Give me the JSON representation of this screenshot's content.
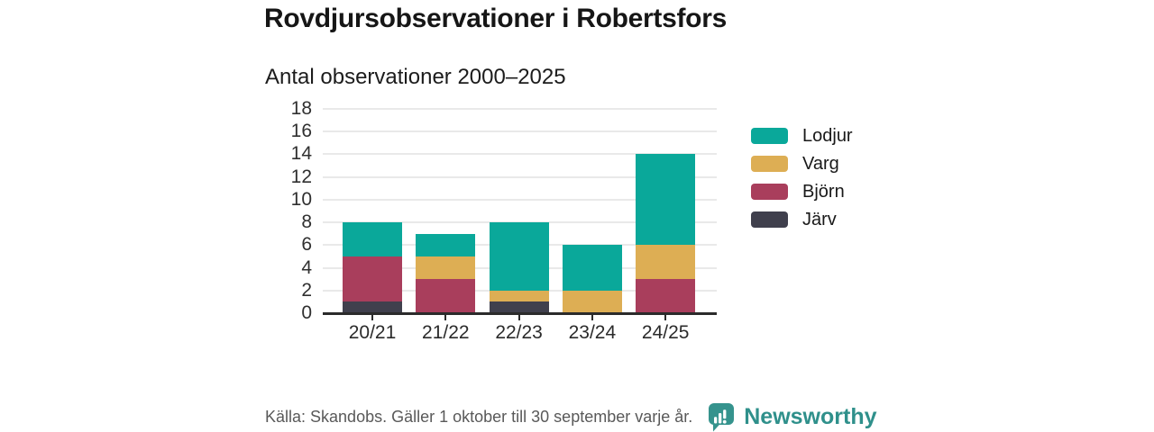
{
  "header": {
    "title": "Rovdjursobservationer i Robertsfors",
    "subtitle": "Antal observationer 2000–2025"
  },
  "chart_data": {
    "type": "bar",
    "stacked": true,
    "title": "Rovdjursobservationer i Robertsfors",
    "subtitle": "Antal observationer 2000–2025",
    "xlabel": "",
    "ylabel": "",
    "categories": [
      "20/21",
      "21/22",
      "22/23",
      "23/24",
      "24/25"
    ],
    "series": [
      {
        "name": "Järv",
        "color": "#40404d",
        "values": [
          1,
          0,
          1,
          0,
          0
        ]
      },
      {
        "name": "Björn",
        "color": "#a93e5c",
        "values": [
          4,
          3,
          0,
          0,
          3
        ]
      },
      {
        "name": "Varg",
        "color": "#ddae54",
        "values": [
          0,
          2,
          1,
          2,
          3
        ]
      },
      {
        "name": "Lodjur",
        "color": "#0aa89a",
        "values": [
          3,
          2,
          6,
          4,
          8
        ]
      }
    ],
    "stack_totals": [
      8,
      7,
      8,
      6,
      14
    ],
    "stack_order_bottom_to_top": [
      "Järv",
      "Björn",
      "Varg",
      "Lodjur"
    ],
    "ylim": [
      0,
      18
    ],
    "ytick_step": 2,
    "grid": "horizontal",
    "legend": {
      "position": "right",
      "order": [
        "Lodjur",
        "Varg",
        "Björn",
        "Järv"
      ]
    }
  },
  "footer": {
    "source": "Källa: Skandobs. Gäller 1 oktober till 30 september varje år.",
    "brand": "Newsworthy",
    "brand_color": "#2f908b",
    "logo_color": "#35938d"
  },
  "colors": {
    "background": "#ffffff",
    "title_text": "#161616",
    "axis": "#2b2b2b",
    "gridline": "#e9e9e9",
    "tick_label": "#303030",
    "source_text": "#595959"
  }
}
